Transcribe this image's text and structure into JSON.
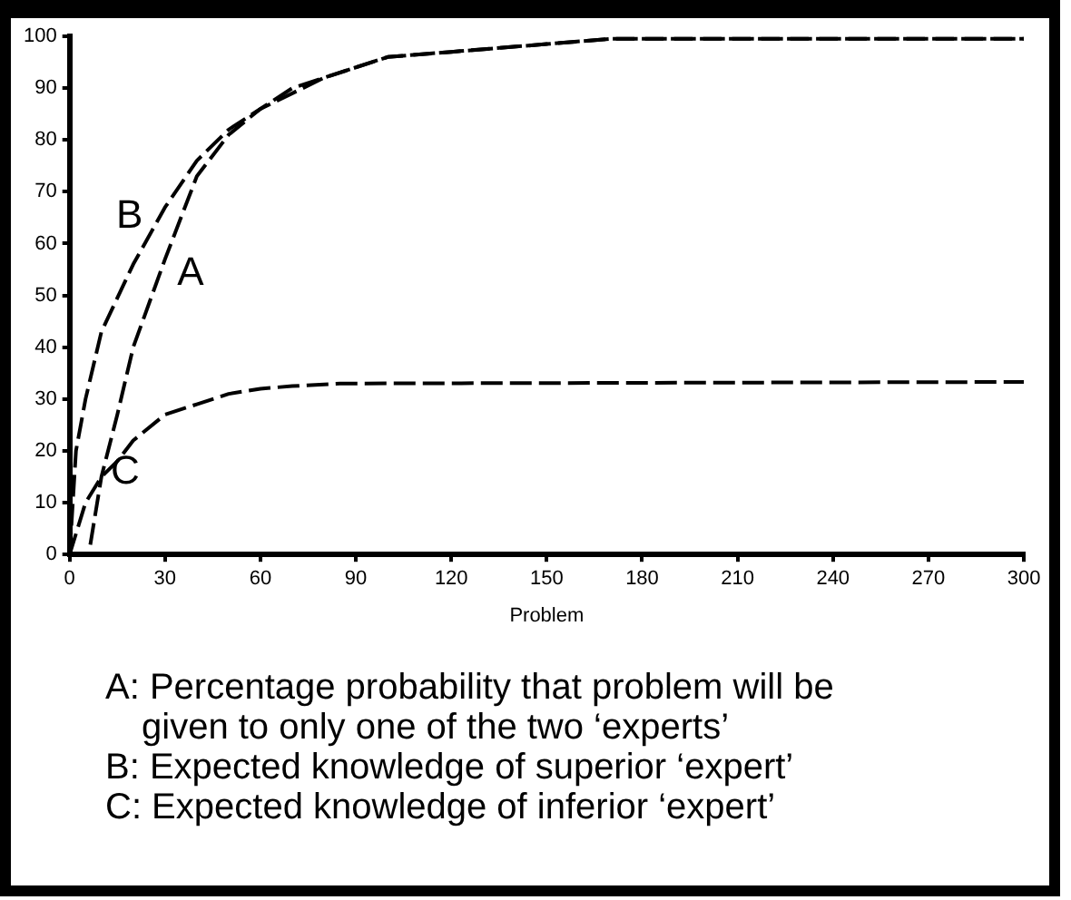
{
  "chart_data": {
    "type": "line",
    "xlabel": "Problem",
    "xlim": [
      0,
      300
    ],
    "xticks": [
      0,
      30,
      60,
      90,
      120,
      150,
      180,
      210,
      240,
      270,
      300
    ],
    "ylim": [
      0,
      100
    ],
    "yticks": [
      0,
      10,
      20,
      30,
      40,
      50,
      60,
      70,
      80,
      90,
      100
    ],
    "grid": false,
    "legend": false,
    "marker": "none",
    "line_style": "dashed",
    "series": [
      {
        "name": "A",
        "color": "#000000",
        "x": [
          0,
          6,
          10,
          15,
          20,
          30,
          40,
          50,
          60,
          70,
          80,
          90,
          100,
          120,
          150,
          170,
          300
        ],
        "values": [
          0,
          0,
          15,
          27,
          40,
          57,
          73,
          81,
          86,
          90,
          92,
          94,
          96,
          97,
          98.5,
          99.5,
          99.5
        ]
      },
      {
        "name": "B",
        "color": "#000000",
        "x": [
          0,
          2,
          5,
          10,
          20,
          30,
          40,
          50,
          60,
          70,
          80,
          90,
          100,
          120,
          150,
          170,
          300
        ],
        "values": [
          0,
          20,
          30,
          43,
          56,
          67,
          76,
          82,
          86,
          89,
          92,
          94,
          96,
          97,
          98.5,
          99.5,
          99.5
        ]
      },
      {
        "name": "C",
        "color": "#000000",
        "x": [
          0,
          5,
          10,
          15,
          20,
          30,
          40,
          50,
          60,
          70,
          85,
          300
        ],
        "values": [
          0,
          10,
          15,
          18,
          22,
          27,
          29,
          31,
          32,
          32.5,
          33,
          33.3
        ]
      }
    ],
    "annotations": [
      "A: Percentage probability that problem will be given to only one of the two ‘experts’",
      "B: Expected knowledge of superior ‘expert’",
      "C: Expected knowledge of inferior ‘expert’"
    ]
  }
}
